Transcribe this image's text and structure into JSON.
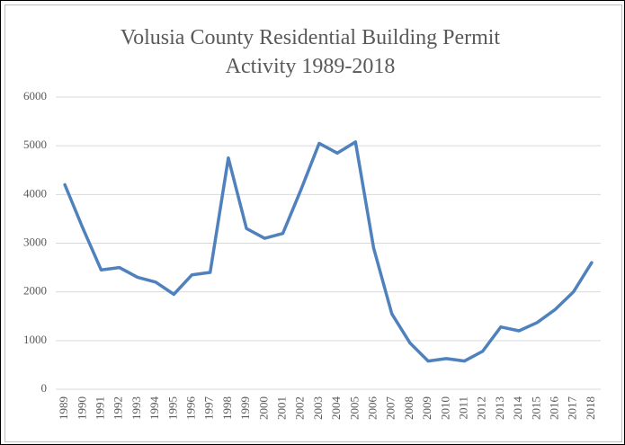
{
  "chart_data": {
    "type": "line",
    "title": "Volusia County Residential Building Permit Activity 1989-2018",
    "categories": [
      "1989",
      "1990",
      "1991",
      "1992",
      "1993",
      "1994",
      "1995",
      "1996",
      "1997",
      "1998",
      "1999",
      "2000",
      "2001",
      "2002",
      "2003",
      "2004",
      "2005",
      "2006",
      "2007",
      "2008",
      "2009",
      "2010",
      "2011",
      "2012",
      "2013",
      "2014",
      "2015",
      "2016",
      "2017",
      "2018"
    ],
    "values": [
      4200,
      3300,
      2450,
      2500,
      2300,
      2200,
      1950,
      2350,
      2400,
      4750,
      3300,
      3100,
      3200,
      4100,
      5050,
      4850,
      5080,
      2900,
      1550,
      950,
      580,
      630,
      580,
      780,
      1280,
      1200,
      1370,
      1640,
      2000,
      2600
    ],
    "color": "#4f81bd",
    "ylim": [
      0,
      6000
    ],
    "yticks": [
      0,
      1000,
      2000,
      3000,
      4000,
      5000,
      6000
    ],
    "grid": true
  }
}
